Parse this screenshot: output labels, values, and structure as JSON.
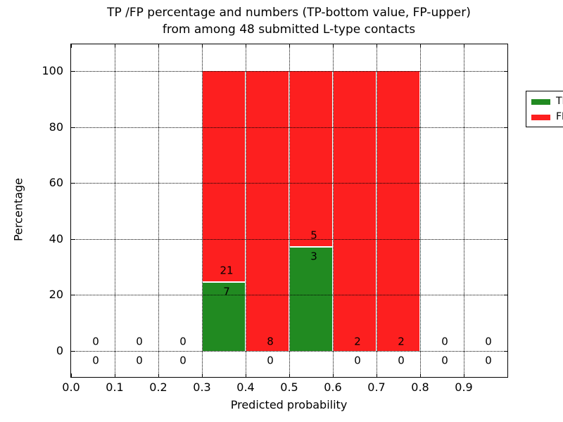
{
  "figure": {
    "title_line1": "TP /FP percentage and numbers (TP-bottom value, FP-upper)",
    "title_line2": "from among 48 submitted L-type contacts"
  },
  "chart_data": {
    "type": "bar",
    "stacked": true,
    "title": "TP /FP percentage and numbers (TP-bottom value, FP-upper)\nfrom among 48 submitted L-type contacts",
    "xlabel": "Predicted probability",
    "ylabel": "Percentage",
    "xlim": [
      0.0,
      1.0
    ],
    "ylim": [
      -10,
      110
    ],
    "x_tick_labels": [
      "0.0",
      "0.1",
      "0.2",
      "0.3",
      "0.4",
      "0.5",
      "0.6",
      "0.7",
      "0.8",
      "0.9"
    ],
    "x_tick_values": [
      0.0,
      0.1,
      0.2,
      0.3,
      0.4,
      0.5,
      0.6,
      0.7,
      0.8,
      0.9
    ],
    "y_tick_values": [
      0,
      20,
      40,
      60,
      80,
      100
    ],
    "grid": "dotted",
    "legend_position": "upper right",
    "bin_edges": [
      0.0,
      0.1,
      0.2,
      0.3,
      0.4,
      0.5,
      0.6,
      0.7,
      0.8,
      0.9,
      1.0
    ],
    "series": [
      {
        "name": "TP",
        "color": "#218a21",
        "counts": [
          0,
          0,
          0,
          7,
          0,
          3,
          0,
          0,
          0,
          0
        ],
        "percentages": [
          0,
          0,
          0,
          25,
          0,
          37.5,
          0,
          0,
          0,
          0
        ]
      },
      {
        "name": "FP",
        "color": "#fd1f1f",
        "counts": [
          0,
          0,
          0,
          21,
          8,
          5,
          2,
          2,
          0,
          0
        ],
        "percentages": [
          0,
          0,
          0,
          75,
          100,
          62.5,
          100,
          100,
          0,
          0
        ]
      }
    ]
  }
}
